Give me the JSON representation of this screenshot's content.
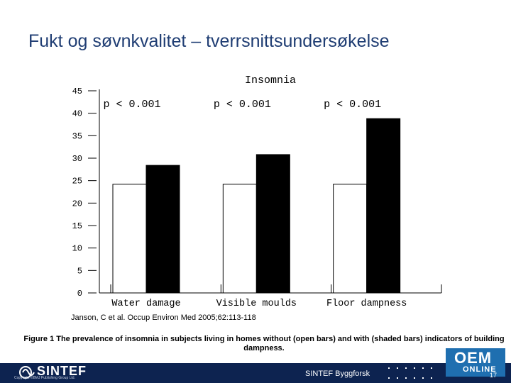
{
  "slide": {
    "title": "Fukt og søvnkvalitet – tverrsnittsundersøkelse",
    "citation": "Janson, C et al. Occup Environ Med 2005;62:113-118",
    "caption": "Figure 1 The prevalence of insomnia in subjects living in homes without (open bars) and with (shaded bars) indicators of building dampness."
  },
  "chart_data": {
    "type": "bar",
    "title": "Insomnia",
    "categories": [
      "Water damage",
      "Visible moulds",
      "Floor dampness"
    ],
    "series": [
      {
        "name": "",
        "values": [
          24.2,
          24.2,
          24.2
        ],
        "color": "#ffffff"
      },
      {
        "name": "",
        "values": [
          28.4,
          30.8,
          38.8
        ],
        "color": "#000000"
      }
    ],
    "annotations": [
      "p < 0.001",
      "p < 0.001",
      "p < 0.001"
    ],
    "yticks": [
      "0",
      "5",
      "10",
      "15",
      "20",
      "25",
      "30",
      "35",
      "40",
      "45"
    ],
    "ylim": [
      0,
      45
    ],
    "grid": false
  },
  "footer": {
    "brand": "SINTEF",
    "copyright": "Copyright ©BMJ Publishing Group Ltd.",
    "center": "SINTEF Byggforsk",
    "page_number": "17",
    "badge_top": "OEM",
    "badge_bottom": "ONLINE"
  }
}
